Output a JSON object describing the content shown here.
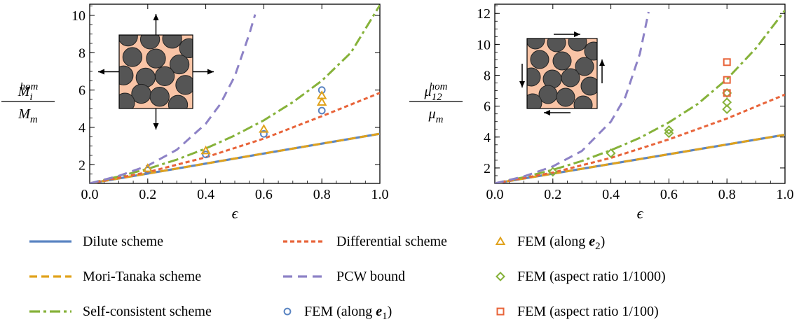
{
  "chart_data": [
    {
      "type": "line",
      "x_axis_label": "ϵ",
      "y_axis_label": {
        "num": "M",
        "num_sub": "i",
        "num_sup": "hom",
        "den": "M",
        "den_sub": "m"
      },
      "xlim": [
        0,
        1
      ],
      "ylim": [
        1,
        10.6
      ],
      "x_ticks": [
        "0.0",
        "0.2",
        "0.4",
        "0.6",
        "0.8",
        "1.0"
      ],
      "y_ticks": [
        "2",
        "4",
        "6",
        "8",
        "10"
      ],
      "x_tick_values": [
        0,
        0.2,
        0.4,
        0.6,
        0.8,
        1.0
      ],
      "y_tick_values": [
        2,
        4,
        6,
        8,
        10
      ],
      "grid": false,
      "inset": "square cell with arrows pointing left, right, up and down",
      "series": [
        {
          "name": "Dilute scheme",
          "style": "solid",
          "x": [
            0,
            0.2,
            0.4,
            0.6,
            0.8,
            1.0
          ],
          "y": [
            1.0,
            1.53,
            2.06,
            2.6,
            3.13,
            3.66
          ]
        },
        {
          "name": "Mori-Tanaka scheme",
          "style": "dashed",
          "x": [
            0,
            0.2,
            0.4,
            0.6,
            0.8,
            1.0
          ],
          "y": [
            1.0,
            1.53,
            2.06,
            2.6,
            3.13,
            3.66
          ]
        },
        {
          "name": "Self-consistent scheme",
          "style": "dashdot",
          "x": [
            0,
            0.1,
            0.2,
            0.3,
            0.4,
            0.5,
            0.6,
            0.7,
            0.8,
            0.9,
            1.0
          ],
          "y": [
            1.0,
            1.37,
            1.78,
            2.27,
            2.87,
            3.57,
            4.38,
            5.35,
            6.5,
            8.0,
            10.55
          ]
        },
        {
          "name": "Differential scheme",
          "style": "dotted",
          "x": [
            0,
            0.2,
            0.4,
            0.6,
            0.8,
            1.0
          ],
          "y": [
            1.0,
            1.6,
            2.4,
            3.4,
            4.6,
            5.85
          ]
        },
        {
          "name": "PCW bound",
          "style": "longdash",
          "x": [
            0,
            0.1,
            0.2,
            0.3,
            0.4,
            0.45,
            0.5,
            0.55,
            0.57
          ],
          "y": [
            1.0,
            1.4,
            1.95,
            2.8,
            4.2,
            5.25,
            6.75,
            9.0,
            10.05
          ]
        },
        {
          "name": "FEM (along e1)",
          "marker": "circle",
          "x": [
            0.2,
            0.4,
            0.6,
            0.8,
            0.8
          ],
          "y": [
            1.7,
            2.55,
            3.65,
            6.0,
            4.9
          ]
        },
        {
          "name": "FEM (along e2)",
          "marker": "triangle",
          "x": [
            0.2,
            0.4,
            0.6,
            0.8,
            0.8
          ],
          "y": [
            1.8,
            2.75,
            3.9,
            5.7,
            5.35
          ]
        }
      ]
    },
    {
      "type": "line",
      "x_axis_label": "ϵ",
      "y_axis_label": {
        "num": "μ",
        "num_sub": "12",
        "num_sup": "hom",
        "den": "μ",
        "den_sub": "m"
      },
      "xlim": [
        0,
        1
      ],
      "ylim": [
        1,
        12.6
      ],
      "x_ticks": [
        "0.0",
        "0.2",
        "0.4",
        "0.6",
        "0.8",
        "1.0"
      ],
      "y_ticks": [
        "2",
        "4",
        "6",
        "8",
        "10",
        "12"
      ],
      "x_tick_values": [
        0,
        0.2,
        0.4,
        0.6,
        0.8,
        1.0
      ],
      "y_tick_values": [
        2,
        4,
        6,
        8,
        10,
        12
      ],
      "grid": false,
      "inset": "square cell with shear arrows on its four edges",
      "series": [
        {
          "name": "Dilute scheme",
          "style": "solid",
          "x": [
            0,
            0.2,
            0.4,
            0.6,
            0.8,
            1.0
          ],
          "y": [
            1.0,
            1.63,
            2.26,
            2.89,
            3.52,
            4.15
          ]
        },
        {
          "name": "Mori-Tanaka scheme",
          "style": "dashed",
          "x": [
            0,
            0.2,
            0.4,
            0.6,
            0.8,
            1.0
          ],
          "y": [
            1.0,
            1.63,
            2.26,
            2.89,
            3.52,
            4.15
          ]
        },
        {
          "name": "Self-consistent scheme",
          "style": "dashdot",
          "x": [
            0,
            0.1,
            0.2,
            0.3,
            0.4,
            0.5,
            0.6,
            0.7,
            0.8,
            0.9,
            1.0
          ],
          "y": [
            1.0,
            1.4,
            1.88,
            2.45,
            3.15,
            3.95,
            4.95,
            6.15,
            7.75,
            9.75,
            12.2
          ]
        },
        {
          "name": "Differential scheme",
          "style": "dotted",
          "x": [
            0,
            0.2,
            0.4,
            0.6,
            0.8,
            1.0
          ],
          "y": [
            1.0,
            1.7,
            2.65,
            3.85,
            5.2,
            6.75
          ]
        },
        {
          "name": "PCW bound",
          "style": "longdash",
          "x": [
            0,
            0.1,
            0.2,
            0.3,
            0.4,
            0.45,
            0.5,
            0.53
          ],
          "y": [
            1.0,
            1.45,
            2.1,
            3.1,
            5.0,
            6.6,
            9.4,
            12.1
          ]
        },
        {
          "name": "FEM (aspect ratio 1/1000)",
          "marker": "diamond",
          "x": [
            0.2,
            0.4,
            0.6,
            0.6,
            0.8,
            0.8,
            0.8,
            0.8
          ],
          "y": [
            1.75,
            2.95,
            4.25,
            4.45,
            6.85,
            6.25,
            5.8,
            6.85
          ],
          "_note": ""
        },
        {
          "name": "FEM (aspect ratio 1/100)",
          "marker": "square",
          "x": [
            0.8,
            0.8,
            0.8
          ],
          "y": [
            8.85,
            7.7,
            6.85
          ]
        }
      ]
    }
  ],
  "legend": {
    "items": [
      {
        "label": "Dilute scheme",
        "kind": "line",
        "style": "solid",
        "color": "#5b85c2"
      },
      {
        "label": "Differential scheme",
        "kind": "line",
        "style": "dotted",
        "color": "#e8643a"
      },
      {
        "label_pre": "FEM (along ",
        "label_vec": "e",
        "label_sub": "2",
        "label_post": ")",
        "kind": "marker",
        "marker": "triangle",
        "color": "#e0a21c"
      },
      {
        "label": "Mori-Tanaka scheme",
        "kind": "line",
        "style": "dashed",
        "color": "#e0a21c"
      },
      {
        "label": "PCW bound",
        "kind": "line",
        "style": "longdash",
        "color": "#8d82c6"
      },
      {
        "label": "FEM (aspect ratio 1/1000)",
        "kind": "marker",
        "marker": "diamond",
        "color": "#86b23a"
      },
      {
        "label": "Self-consistent scheme",
        "kind": "line",
        "style": "dashdot",
        "color": "#86b23a"
      },
      {
        "label_pre": "FEM (along ",
        "label_vec": "e",
        "label_sub": "1",
        "label_post": ")",
        "kind": "marker",
        "marker": "circle",
        "color": "#5b85c2"
      },
      {
        "label": "FEM (aspect ratio 1/100)",
        "kind": "marker",
        "marker": "square",
        "color": "#e8643a"
      }
    ]
  },
  "colors": {
    "dilute": "#5b85c2",
    "mori_tanaka": "#e0a21c",
    "self_consistent": "#86b23a",
    "differential": "#e8643a",
    "pcw": "#8d82c6",
    "fem_e1": "#5b85c2",
    "fem_e2": "#e0a21c",
    "fem_1000": "#86b23a",
    "fem_100": "#e8643a",
    "inset_fill": "#f9c4a6",
    "inclusion_fill": "#555555"
  }
}
